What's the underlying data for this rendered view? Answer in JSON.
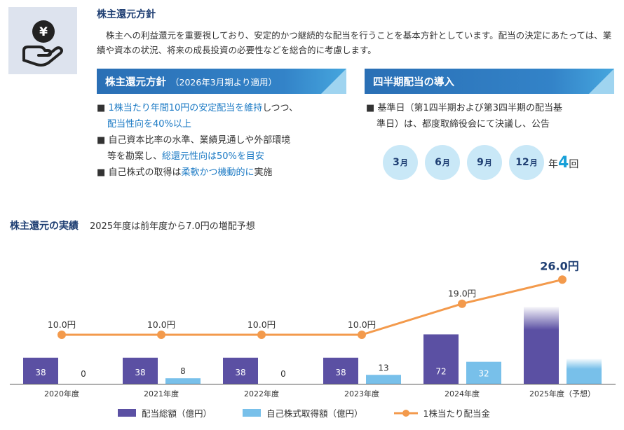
{
  "policy": {
    "title": "株主還元方針",
    "description": "株主への利益還元を重要視しており、安定的かつ継続的な配当を行うことを基本方針としています。配当の決定にあたっては、業績や資本の状況、将来の成長投資の必要性などを総合的に考慮します。"
  },
  "left_box": {
    "title": "株主還元方針",
    "subtitle": "（2026年3月期より適用）",
    "bullets": [
      {
        "a": "1株当たり年間10円の安定配当を維持",
        "b": "しつつ、",
        "c": "配当性向を40%以上"
      },
      {
        "a": "自己資本比率の水準、業績見通しや外部環境",
        "b": "等を勘案し、",
        "c": "総還元性向は50%を目安"
      },
      {
        "a": "自己株式の取得は",
        "b": "柔軟かつ機動的に",
        "c": "実施"
      }
    ]
  },
  "right_box": {
    "title": "四半期配当の導入",
    "bullet_line1": "基準日（第1四半期および第3四半期の配当基",
    "bullet_line2": "準日）は、都度取締役会にて決議し、公告",
    "months": [
      {
        "num": "3",
        "unit": "月"
      },
      {
        "num": "6",
        "unit": "月"
      },
      {
        "num": "9",
        "unit": "月"
      },
      {
        "num": "12",
        "unit": "月"
      }
    ],
    "times_prefix": "年",
    "times_num": "4",
    "times_suffix": "回"
  },
  "chart_title": "株主還元の実績",
  "chart_subtitle": "2025年度は前年度から7.0円の増配予想",
  "legend": {
    "dividend": "配当総額（億円）",
    "buyback": "自己株式取得額（億円）",
    "dps": "1株当たり配当金"
  },
  "colors": {
    "dividend": "#5b50a3",
    "buyback": "#78c0ea",
    "dps": "#f39a4c",
    "accent": "#2f7fc4",
    "navy": "#1f3f73"
  },
  "chart_data": {
    "type": "bar",
    "categories": [
      "2020年度",
      "2021年度",
      "2022年度",
      "2023年度",
      "2024年度",
      "2025年度（予想）"
    ],
    "series": [
      {
        "name": "配当総額（億円）",
        "type": "bar",
        "values": [
          38,
          38,
          38,
          38,
          72,
          112
        ],
        "labels": [
          "38",
          "38",
          "38",
          "38",
          "72",
          ""
        ]
      },
      {
        "name": "自己株式取得額（億円）",
        "type": "bar",
        "values": [
          0,
          8,
          0,
          13,
          32,
          36
        ],
        "labels": [
          "0",
          "8",
          "0",
          "13",
          "32",
          ""
        ]
      },
      {
        "name": "1株当たり配当金",
        "type": "line",
        "values": [
          10.0,
          10.0,
          10.0,
          10.0,
          19.0,
          26.0
        ],
        "labels": [
          "10.0円",
          "10.0円",
          "10.0円",
          "10.0円",
          "19.0円",
          "26.0円"
        ]
      }
    ]
  }
}
